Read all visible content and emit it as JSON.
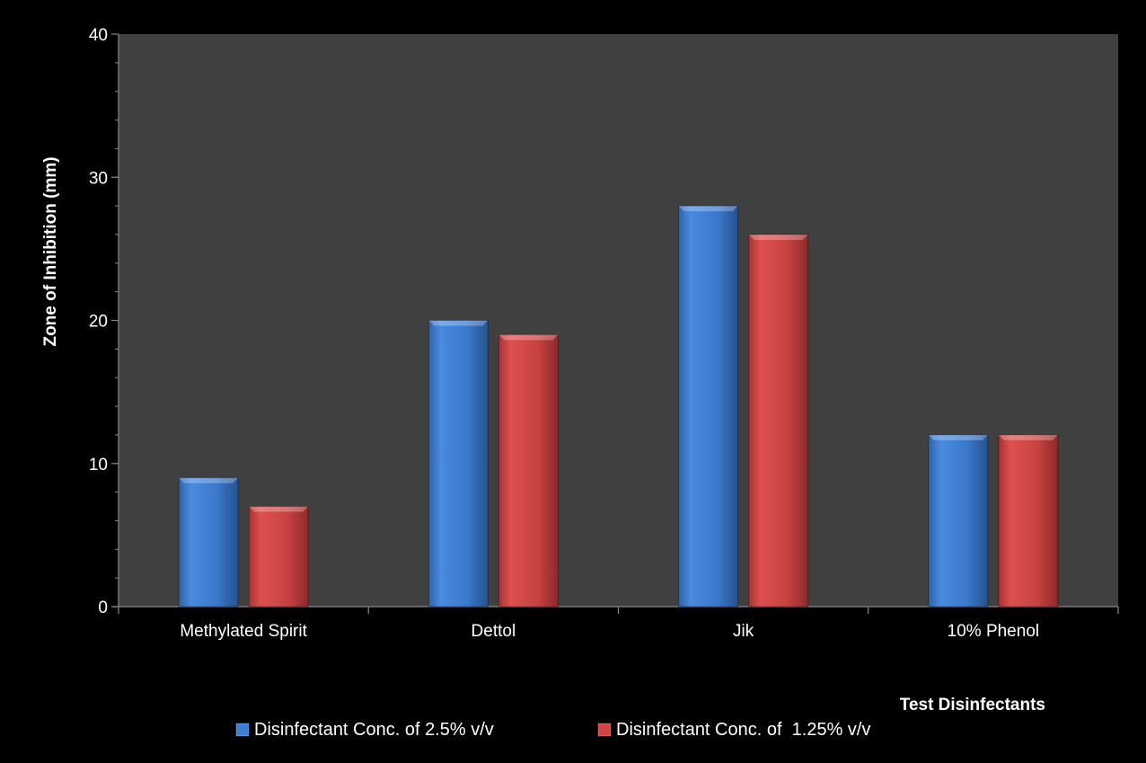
{
  "chart_data": {
    "type": "bar",
    "title": "",
    "xlabel": "Test Disinfectants",
    "ylabel": "Zone of Inhibition (mm)",
    "ylim": [
      0,
      40
    ],
    "yticks": [
      0,
      10,
      20,
      30,
      40
    ],
    "grid": false,
    "legend_position": "bottom",
    "categories": [
      "Methylated Spirit",
      "Dettol",
      "Jik",
      "10% Phenol"
    ],
    "series": [
      {
        "name": "Disinfectant Conc. of 2.5% v/v",
        "color": "#3f7fd3",
        "values": [
          9,
          20,
          28,
          12
        ]
      },
      {
        "name": "Disinfectant Conc. of  1.25% v/v",
        "color": "#d04545",
        "values": [
          7,
          19,
          26,
          12
        ]
      }
    ]
  },
  "colors": {
    "background": "#000000",
    "plot_area": "#404040",
    "axis": "#888888",
    "text": "#ffffff"
  }
}
